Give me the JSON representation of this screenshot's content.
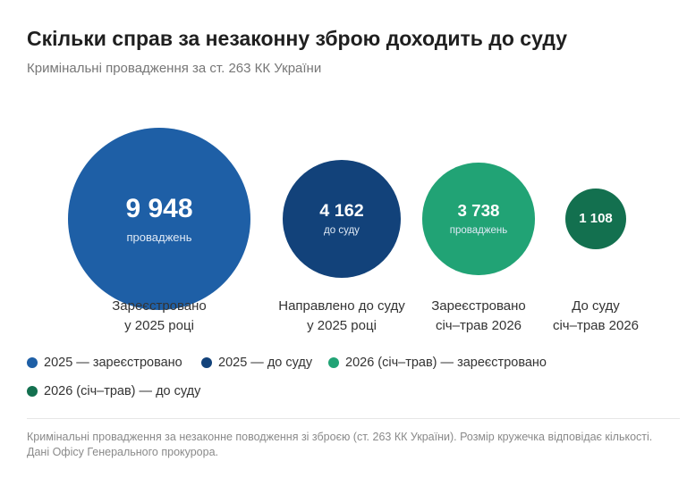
{
  "header": {
    "title": "Скільки справ за незаконну зброю доходить до суду",
    "subtitle": "Кримінальні провадження за ст. 263 КК України"
  },
  "chart_data": {
    "type": "bubble",
    "title": "Скільки справ за незаконну зброю доходить до суду",
    "subtitle": "Кримінальні провадження за ст. 263 КК України",
    "categories": [
      "Зареєстровано у 2025 році",
      "Направлено до суду у 2025 році",
      "Зареєстровано січ–трав 2026",
      "До суду січ–трав 2026"
    ],
    "values": [
      9948,
      4162,
      3738,
      1108
    ],
    "bubbles": [
      {
        "value": 9948,
        "value_label": "9 948",
        "unit": "проваджень",
        "caption_line1": "Зареєстровано",
        "caption_line2": "у 2025 році",
        "color": "#1e5fa6"
      },
      {
        "value": 4162,
        "value_label": "4 162",
        "unit": "до суду",
        "caption_line1": "Направлено до суду",
        "caption_line2": "у 2025 році",
        "color": "#12427a"
      },
      {
        "value": 3738,
        "value_label": "3 738",
        "unit": "проваджень",
        "caption_line1": "Зареєстровано",
        "caption_line2": "січ–трав 2026",
        "color": "#21a375"
      },
      {
        "value": 1108,
        "value_label": "1 108",
        "unit": "",
        "caption_line1": "До суду",
        "caption_line2": "січ–трав 2026",
        "color": "#13704f"
      }
    ],
    "legend": [
      {
        "label": "2025 — зареєстровано",
        "color": "#1e5fa6"
      },
      {
        "label": "2025 — до суду",
        "color": "#12427a"
      },
      {
        "label": "2026 (січ–трав) — зареєстровано",
        "color": "#21a375"
      },
      {
        "label": "2026 (січ–трав) — до суду",
        "color": "#13704f"
      }
    ],
    "legend_position": "bottom-left",
    "grid": false
  },
  "footer": {
    "note": "Кримінальні провадження за незаконне поводження зі зброєю (ст. 263 КК України). Розмір кружечка відповідає кількості. Дані Офісу Генерального прокурора."
  }
}
